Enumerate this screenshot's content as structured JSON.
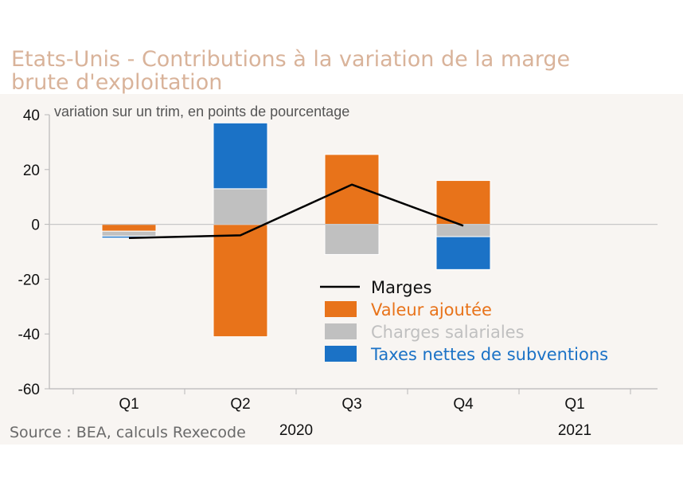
{
  "title": "Etats-Unis - Contributions à la variation de la marge brute d'exploitation",
  "source": "Source : BEA, calculs Rexecode",
  "chart_data": {
    "type": "bar",
    "subtype": "stacked-bar-with-line",
    "ylabel": "variation sur un trim, en points de pourcentage",
    "ylim": [
      -60,
      40
    ],
    "yticks": [
      40,
      20,
      0,
      -20,
      -40,
      -60
    ],
    "categories": [
      "Q1",
      "Q2",
      "Q3",
      "Q4",
      "Q1"
    ],
    "year_labels": [
      {
        "label": "2020",
        "index": 1.5
      },
      {
        "label": "2021",
        "index": 4
      }
    ],
    "grid": false,
    "legend_position": "center-right",
    "series": [
      {
        "name": "Valeur ajoutée",
        "kind": "bar",
        "color": "#e8731a",
        "values": [
          -2.5,
          -41,
          25.5,
          16,
          null
        ]
      },
      {
        "name": "Charges salariales",
        "kind": "bar",
        "color": "#c0c0c0",
        "values": [
          -1.8,
          13,
          -11,
          -4.5,
          null
        ]
      },
      {
        "name": "Taxes nettes de subventions",
        "kind": "bar",
        "color": "#1b72c6",
        "values": [
          -0.7,
          24,
          0,
          -12,
          null
        ]
      },
      {
        "name": "Marges",
        "kind": "line",
        "color": "#000000",
        "values": [
          -5,
          -4,
          14.5,
          -0.5,
          null
        ]
      }
    ]
  }
}
